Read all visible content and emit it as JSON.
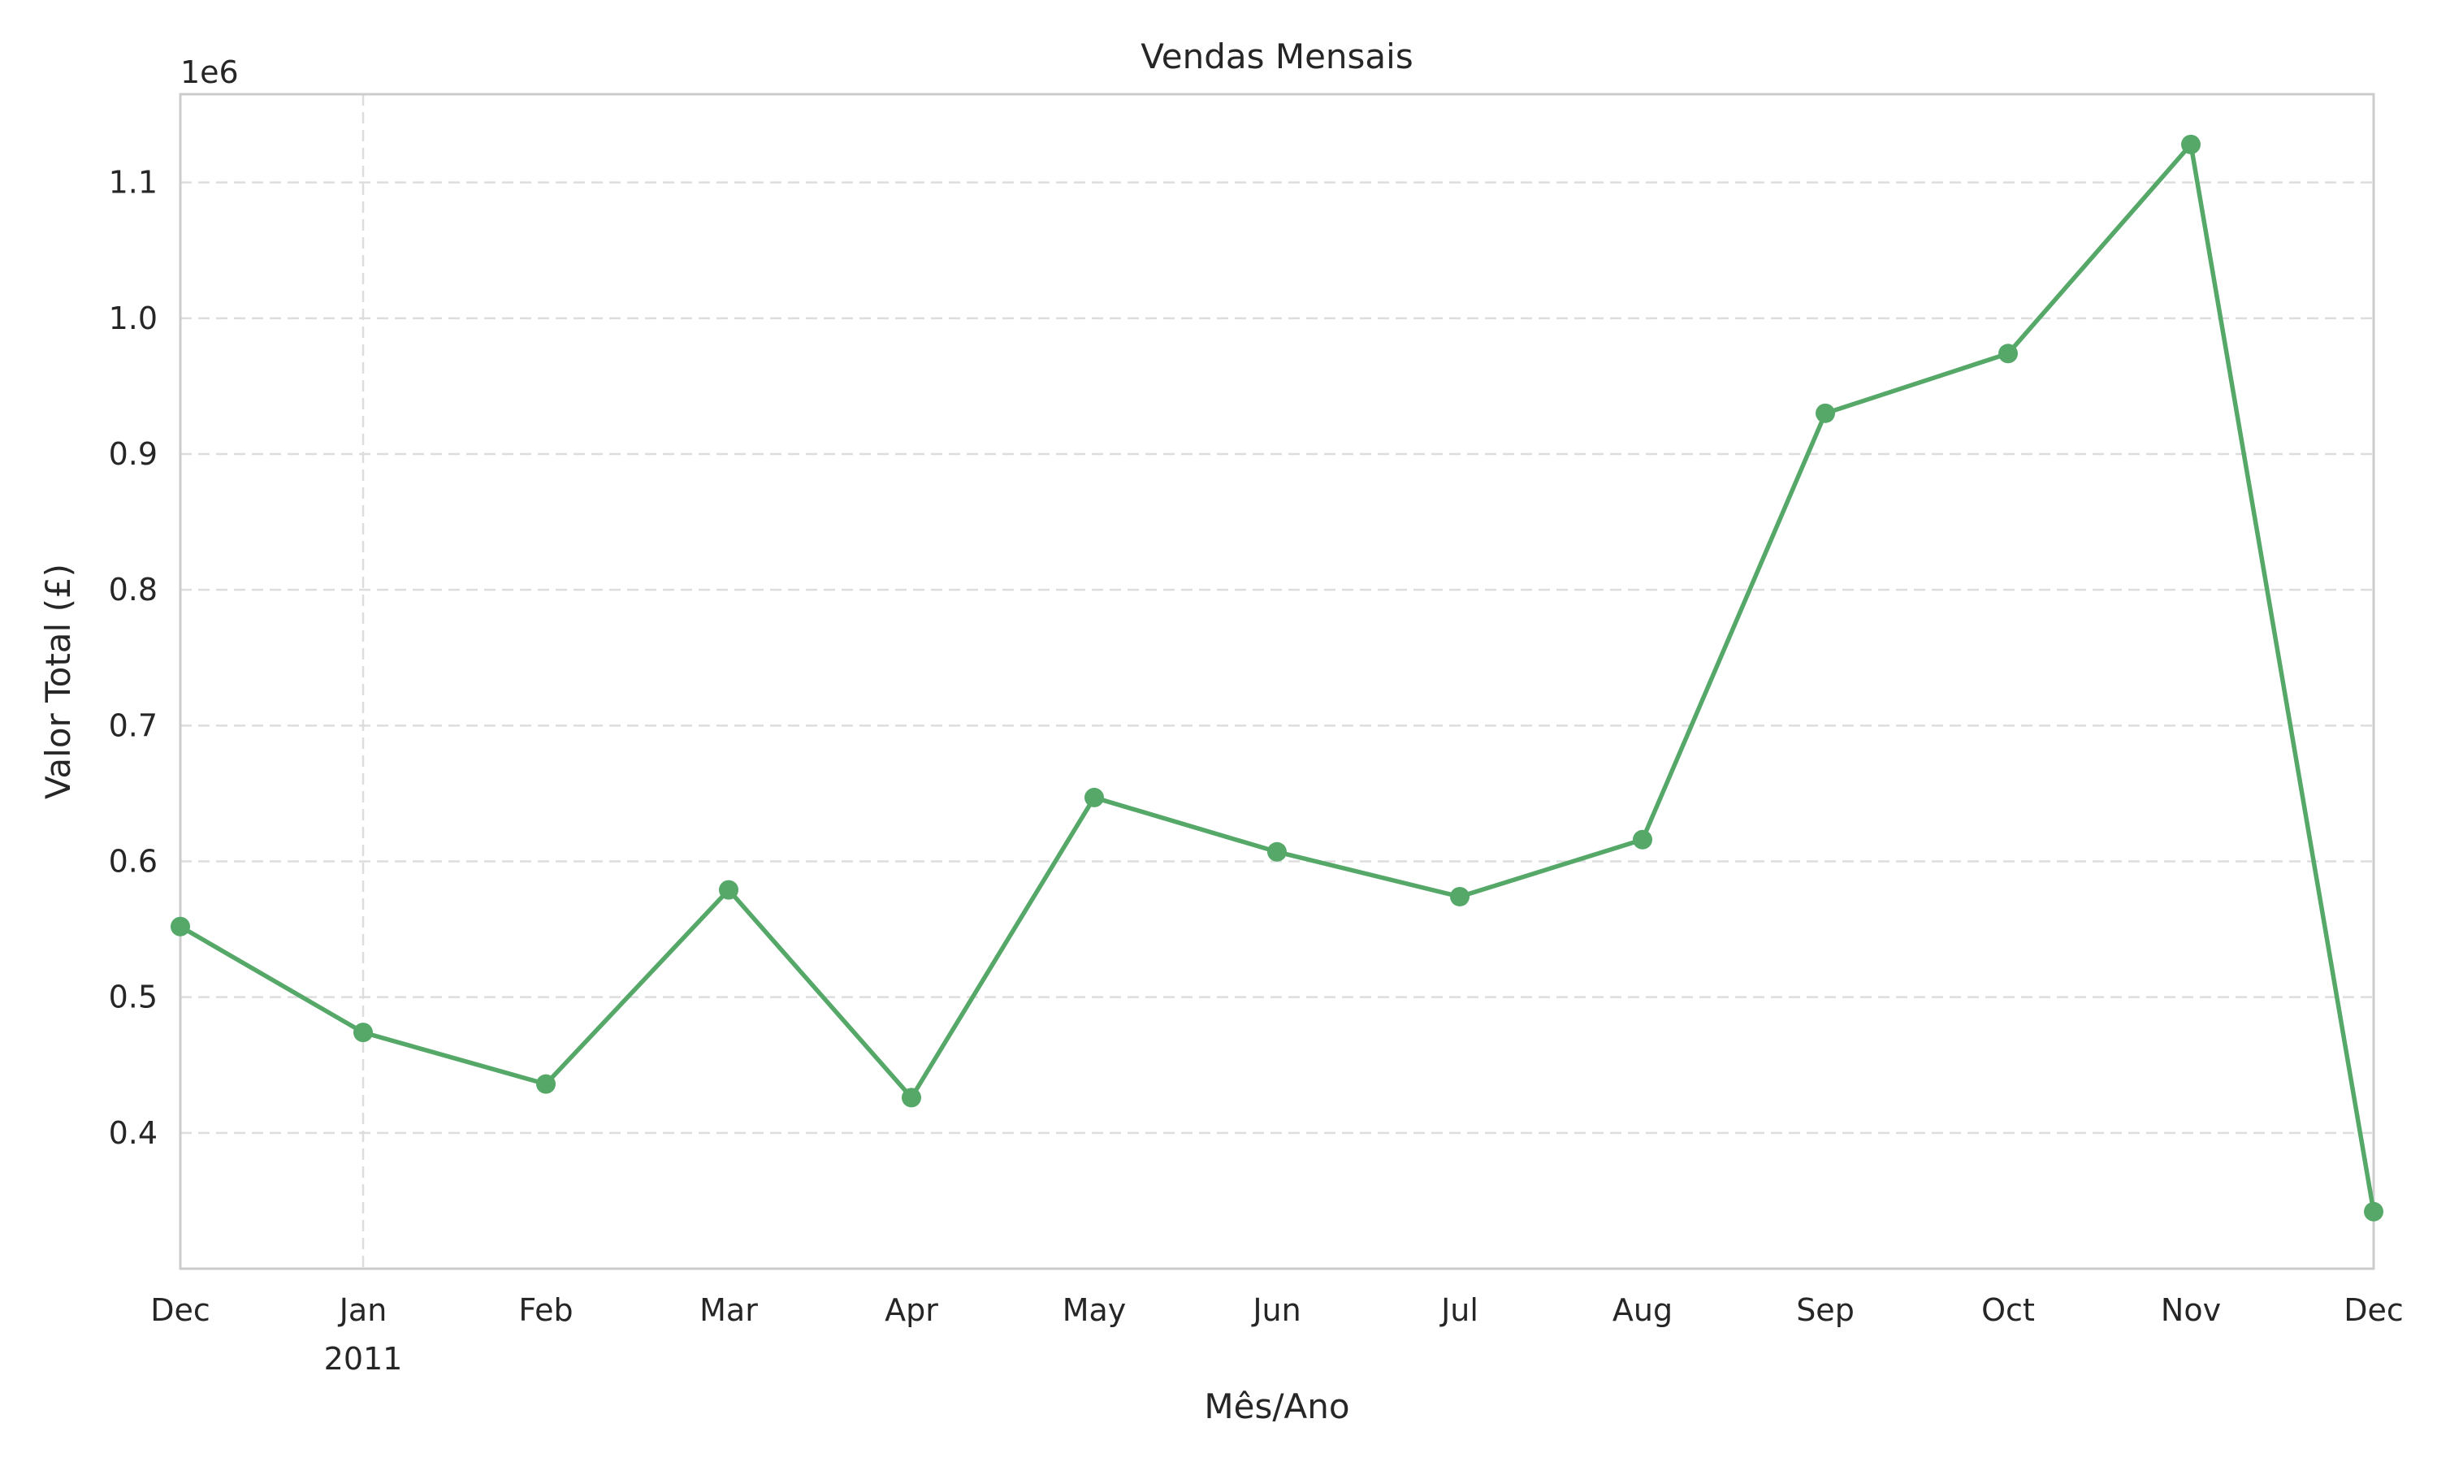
{
  "chart_data": {
    "type": "line",
    "title": "Vendas Mensais",
    "xlabel": "Mês/Ano",
    "ylabel": "Valor Total (£)",
    "y_offset_label": "1e6",
    "x": [
      "2010-12",
      "2011-01",
      "2011-02",
      "2011-03",
      "2011-04",
      "2011-05",
      "2011-06",
      "2011-07",
      "2011-08",
      "2011-09",
      "2011-10",
      "2011-11",
      "2011-12"
    ],
    "x_tick_labels": [
      "Dec",
      "Jan",
      "Feb",
      "Mar",
      "Apr",
      "May",
      "Jun",
      "Jul",
      "Aug",
      "Sep",
      "Oct",
      "Nov",
      "Dec"
    ],
    "x_year_label": "2011",
    "series": [
      {
        "values": [
          552000,
          474000,
          436000,
          579000,
          426000,
          647000,
          607000,
          574000,
          616000,
          930000,
          974000,
          1128000,
          342000
        ],
        "color": "#55a868"
      }
    ],
    "y_ticks": [
      0.4,
      0.5,
      0.6,
      0.7,
      0.8,
      0.9,
      1.0,
      1.1
    ],
    "y_tick_labels": [
      "0.4",
      "0.5",
      "0.6",
      "0.7",
      "0.8",
      "0.9",
      "1.0",
      "1.1"
    ],
    "ylim": [
      300000,
      1165000
    ],
    "grid": true,
    "colors": {
      "line": "#55a868",
      "grid": "#dddddd",
      "spine": "#cccccc",
      "text": "#262626"
    }
  }
}
